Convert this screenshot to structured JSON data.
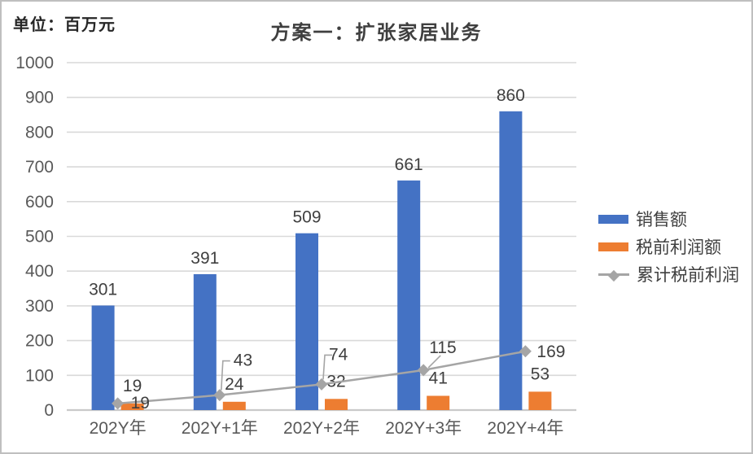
{
  "chart_data": {
    "type": "combo-bar-line",
    "title": "方案一：扩张家居业务",
    "unit_label": "单位：百万元",
    "categories": [
      "202Y年",
      "202Y+1年",
      "202Y+2年",
      "202Y+3年",
      "202Y+4年"
    ],
    "series": [
      {
        "name": "销售额",
        "kind": "bar",
        "color": "#4472C4",
        "values": [
          301,
          391,
          509,
          661,
          860
        ]
      },
      {
        "name": "税前利润额",
        "kind": "bar",
        "color": "#ED7D31",
        "values": [
          19,
          24,
          32,
          41,
          53
        ]
      },
      {
        "name": "累计税前利润",
        "kind": "line",
        "color": "#A5A5A5",
        "values": [
          19,
          43,
          74,
          115,
          169
        ]
      }
    ],
    "xlabel": "",
    "ylabel": "",
    "ylim": [
      0,
      1000
    ],
    "ytick_step": 100,
    "grid": true,
    "legend_position": "right",
    "gridline_color": "#D9D9D9",
    "axis_line_color": "#C9C9C9",
    "axis_label_color": "#595959",
    "data_label_color": "#3F3F3F"
  }
}
